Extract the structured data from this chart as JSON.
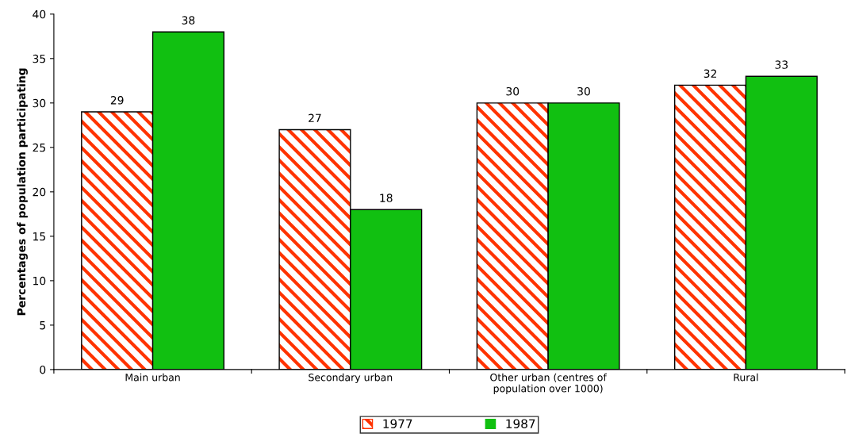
{
  "chart_data": {
    "type": "bar",
    "ylabel": "Percentages of population participating",
    "categories": [
      "Main urban",
      "Secondary urban",
      "Other urban (centres of\npopulation over 1000)",
      "Rural"
    ],
    "series": [
      {
        "name": "1977",
        "color": "#ff3300",
        "values": [
          29,
          27,
          30,
          32
        ]
      },
      {
        "name": "1987",
        "color": "#11c011",
        "values": [
          38,
          18,
          30,
          33
        ]
      }
    ],
    "ylim": [
      0,
      40
    ],
    "yticks": [
      0,
      5,
      10,
      15,
      20,
      25,
      30,
      35,
      40
    ],
    "grid": false,
    "legend": "bottom",
    "data_labels": true
  }
}
